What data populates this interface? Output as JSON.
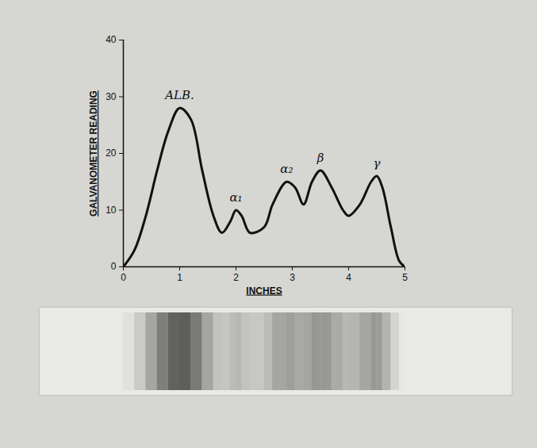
{
  "chart_data": {
    "type": "line",
    "x_label": "INCHES",
    "y_label": "GALVANOMETER READING",
    "color": "#111111",
    "x": [
      0,
      0.2,
      0.4,
      0.6,
      0.8,
      1.0,
      1.2,
      1.4,
      1.6,
      1.75,
      1.9,
      2.0,
      2.1,
      2.25,
      2.5,
      2.65,
      2.9,
      3.05,
      3.2,
      3.35,
      3.5,
      3.7,
      3.9,
      4.0,
      4.2,
      4.4,
      4.5,
      4.6,
      4.75,
      4.9,
      5.0
    ],
    "values": [
      0,
      3,
      9,
      17,
      24,
      28,
      26,
      17,
      9,
      6,
      8,
      10,
      9,
      6,
      7,
      11,
      15,
      14,
      11,
      15,
      17,
      14,
      10,
      9,
      11,
      15,
      16,
      14,
      7,
      1,
      0
    ],
    "xlim": [
      0,
      5
    ],
    "xticks": [
      0,
      1,
      2,
      3,
      4,
      5
    ],
    "ylim": [
      0,
      40
    ],
    "yticks": [
      0,
      10,
      20,
      30,
      40
    ],
    "grid": false,
    "annotations": [
      {
        "text": "ALB.",
        "x": 1.0,
        "y": 28
      },
      {
        "text": "α₁",
        "x": 2.0,
        "y": 10
      },
      {
        "text": "α₂",
        "x": 2.9,
        "y": 15
      },
      {
        "text": "β",
        "x": 3.5,
        "y": 17
      },
      {
        "text": "γ",
        "x": 4.5,
        "y": 16
      }
    ]
  }
}
